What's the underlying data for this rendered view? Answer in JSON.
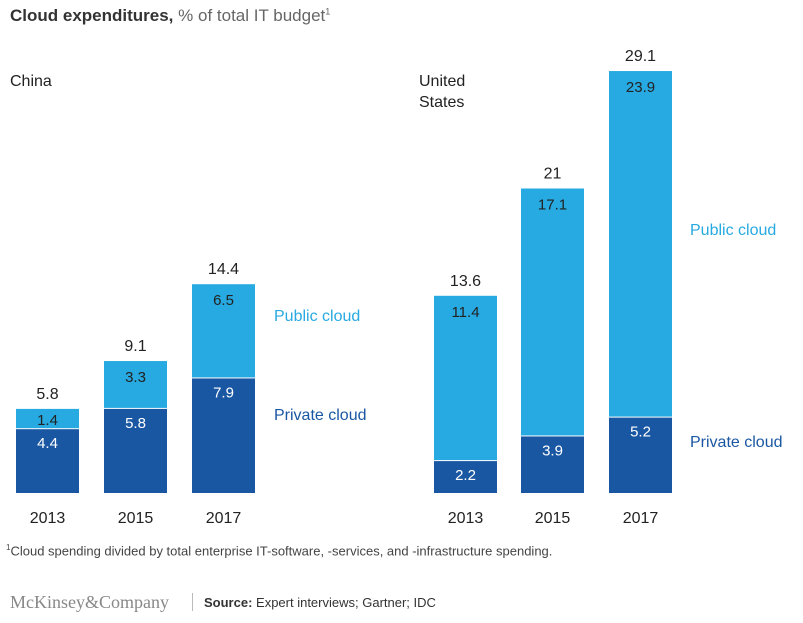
{
  "colors": {
    "public": "#27a9e1",
    "private": "#1a57a3",
    "text": "#222222"
  },
  "chart_data": {
    "type": "bar",
    "stacked": true,
    "title": "Cloud expenditures,",
    "subtitle": "% of total IT budget",
    "title_footnote": "1",
    "panels": [
      {
        "name": "China",
        "categories": [
          "2013",
          "2015",
          "2017"
        ],
        "series": [
          {
            "name": "Private cloud",
            "values": [
              4.4,
              5.8,
              7.9
            ]
          },
          {
            "name": "Public cloud",
            "values": [
              1.4,
              3.3,
              6.5
            ]
          }
        ],
        "totals": [
          "5.8",
          "9.1",
          "14.4"
        ]
      },
      {
        "name": "United States",
        "categories": [
          "2013",
          "2015",
          "2017"
        ],
        "series": [
          {
            "name": "Private cloud",
            "values": [
              2.2,
              3.9,
              5.2
            ]
          },
          {
            "name": "Public cloud",
            "values": [
              11.4,
              17.1,
              23.9
            ]
          }
        ],
        "totals": [
          "13.6",
          "21",
          "29.1"
        ]
      }
    ],
    "legend": {
      "public": "Public cloud",
      "private": "Private cloud"
    }
  },
  "region_labels": {
    "china": "China",
    "us_line1": "United",
    "us_line2": "States"
  },
  "footnote": {
    "mark": "1",
    "text": "Cloud spending divided by total enterprise IT-software, -services, and -infrastructure spending."
  },
  "brand": "McKinsey&Company",
  "source": {
    "label": "Source:",
    "text": " Expert interviews; Gartner; IDC"
  }
}
